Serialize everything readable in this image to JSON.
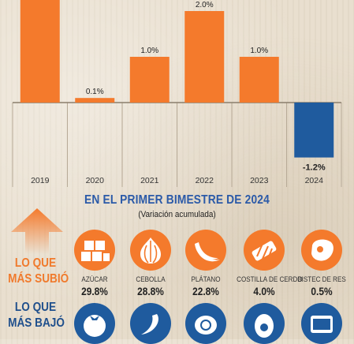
{
  "chart_data": {
    "type": "bar",
    "categories": [
      "2019",
      "2020",
      "2021",
      "2022",
      "2023",
      "2024"
    ],
    "values": [
      null,
      0.1,
      1.0,
      2.0,
      1.0,
      -1.2
    ],
    "value_labels": [
      "",
      "0.1%",
      "1.0%",
      "2.0%",
      "1.0%",
      "-1.2%"
    ],
    "colors": {
      "positive": "#f47a2c",
      "negative": "#1f5b9e"
    }
  },
  "headline": "EN EL PRIMER BIMESTRE DE 2024",
  "subheadline": "(Variación acumulada)",
  "rose_label": [
    "LO QUE",
    "MÁS SUBIÓ"
  ],
  "fell_label": [
    "LO QUE",
    "MÁS BAJÓ"
  ],
  "rose_items": [
    {
      "name": "AZÚCAR",
      "value": "29.8%",
      "icon": "sugar-cubes-icon"
    },
    {
      "name": "CEBOLLA",
      "value": "28.8%",
      "icon": "onion-icon"
    },
    {
      "name": "PLÁTANO",
      "value": "22.8%",
      "icon": "banana-icon"
    },
    {
      "name": "COSTILLA DE CERDO",
      "value": "4.0%",
      "icon": "pork-ribs-icon"
    },
    {
      "name": "BISTEC DE RES",
      "value": "0.5%",
      "icon": "beef-steak-icon"
    }
  ],
  "fell_items": [
    {
      "icon": "tomato-icon"
    },
    {
      "icon": "chili-pepper-icon"
    },
    {
      "icon": "lemon-icon"
    },
    {
      "icon": "egg-icon"
    },
    {
      "icon": "canned-fish-icon"
    }
  ]
}
